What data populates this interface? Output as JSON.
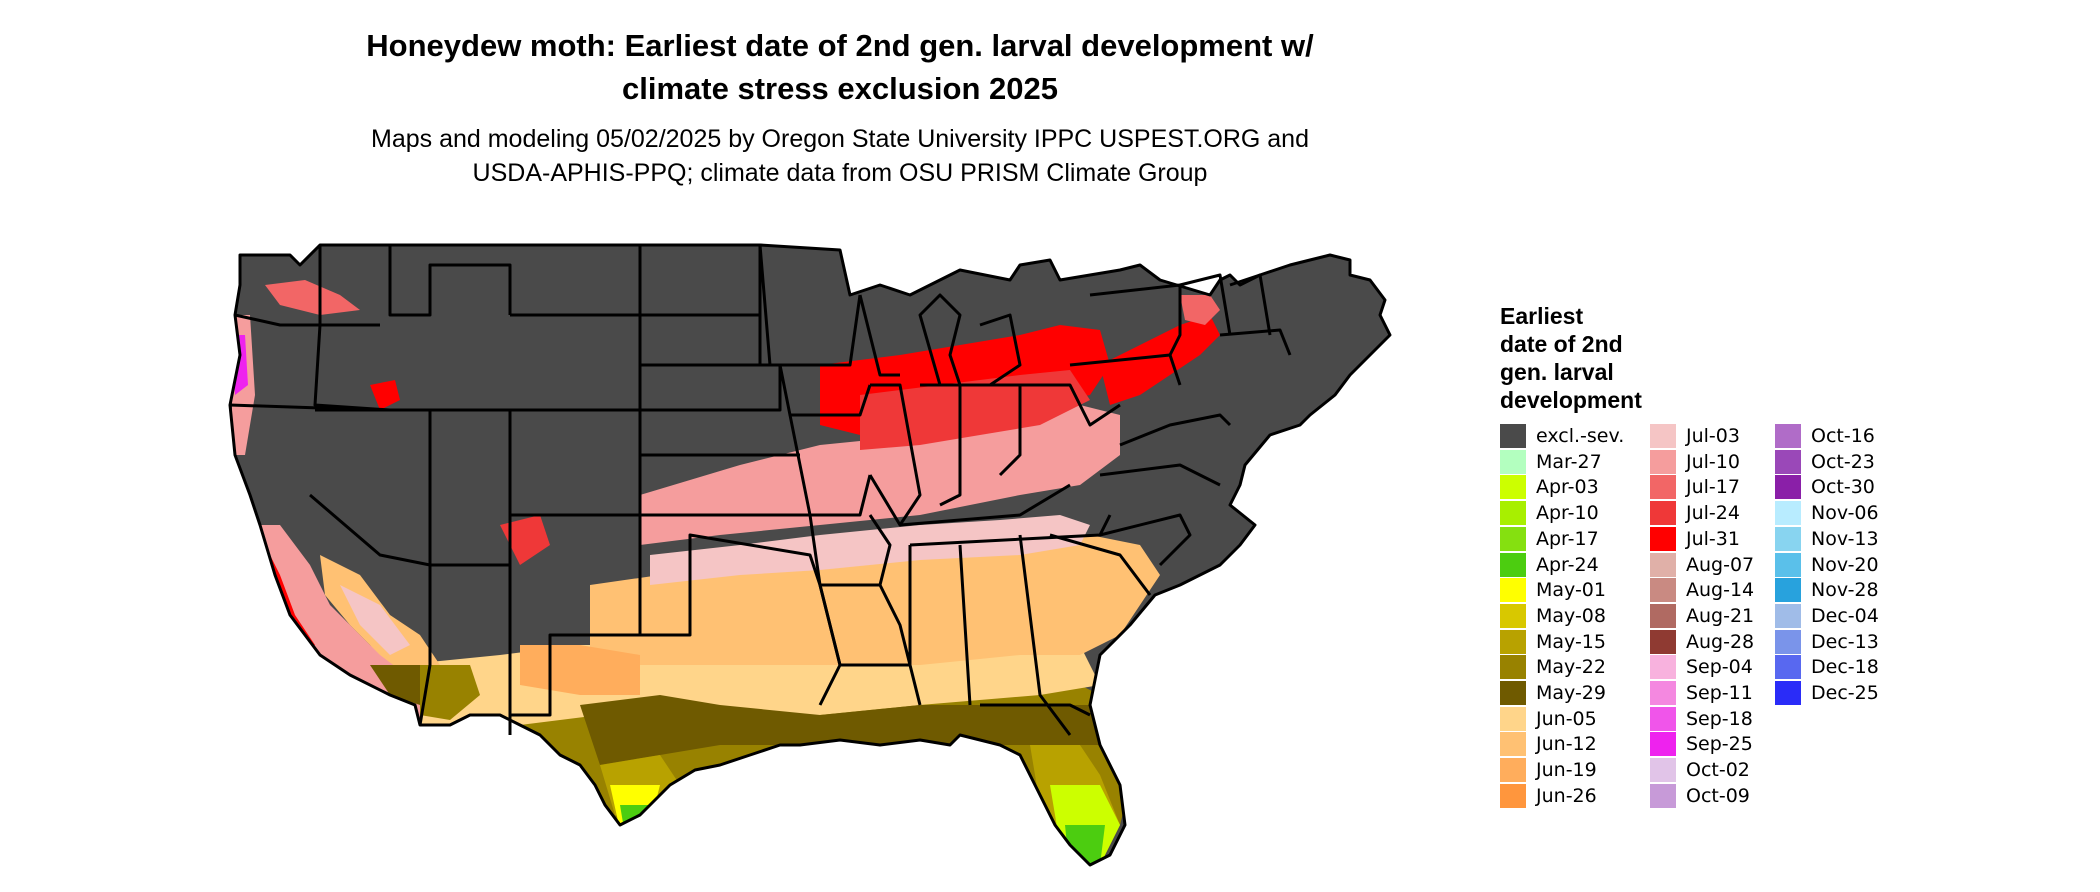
{
  "title_lines": [
    "Honeydew moth: Earliest date of 2nd gen. larval development w/",
    "climate stress exclusion 2025"
  ],
  "subtitle_lines": [
    "Maps and modeling 05/02/2025 by Oregon State University IPPC USPEST.ORG and",
    "USDA-APHIS-PPQ; climate data from OSU PRISM Climate Group"
  ],
  "legend": {
    "title_lines": [
      "Earliest",
      "date of 2nd",
      "gen. larval",
      "development"
    ],
    "items": [
      {
        "label": "excl.-sev.",
        "color": "#4a4a4a"
      },
      {
        "label": "Mar-27",
        "color": "#b3ffbf"
      },
      {
        "label": "Apr-03",
        "color": "#ccff00"
      },
      {
        "label": "Apr-10",
        "color": "#a8ef00"
      },
      {
        "label": "Apr-17",
        "color": "#85e010"
      },
      {
        "label": "Apr-24",
        "color": "#4ccd10"
      },
      {
        "label": "May-01",
        "color": "#ffff00"
      },
      {
        "label": "May-08",
        "color": "#d8c800"
      },
      {
        "label": "May-15",
        "color": "#b8a200"
      },
      {
        "label": "May-22",
        "color": "#988200"
      },
      {
        "label": "May-29",
        "color": "#6f5a00"
      },
      {
        "label": "Jun-05",
        "color": "#ffd58a"
      },
      {
        "label": "Jun-12",
        "color": "#ffc173"
      },
      {
        "label": "Jun-19",
        "color": "#ffad5c"
      },
      {
        "label": "Jun-26",
        "color": "#ff963d"
      },
      {
        "label": "Jul-03",
        "color": "#f5c5c5"
      },
      {
        "label": "Jul-10",
        "color": "#f59d9d"
      },
      {
        "label": "Jul-17",
        "color": "#f26666"
      },
      {
        "label": "Jul-24",
        "color": "#ef3838"
      },
      {
        "label": "Jul-31",
        "color": "#ff0000"
      },
      {
        "label": "Aug-07",
        "color": "#e0b0a8"
      },
      {
        "label": "Aug-14",
        "color": "#c98a82"
      },
      {
        "label": "Aug-21",
        "color": "#b06a62"
      },
      {
        "label": "Aug-28",
        "color": "#8f3a32"
      },
      {
        "label": "Sep-04",
        "color": "#f8b2de"
      },
      {
        "label": "Sep-11",
        "color": "#f488e0"
      },
      {
        "label": "Sep-18",
        "color": "#f055ea"
      },
      {
        "label": "Sep-25",
        "color": "#ee22ee"
      },
      {
        "label": "Oct-02",
        "color": "#e1c4e8"
      },
      {
        "label": "Oct-09",
        "color": "#c79ad8"
      },
      {
        "label": "Oct-16",
        "color": "#b06cc8"
      },
      {
        "label": "Oct-23",
        "color": "#9a48b8"
      },
      {
        "label": "Oct-30",
        "color": "#8a1fa8"
      },
      {
        "label": "Nov-06",
        "color": "#b8ecff"
      },
      {
        "label": "Nov-13",
        "color": "#88d4f0"
      },
      {
        "label": "Nov-20",
        "color": "#5ac0ea"
      },
      {
        "label": "Nov-28",
        "color": "#28a2dd"
      },
      {
        "label": "Dec-04",
        "color": "#a0bce8"
      },
      {
        "label": "Dec-13",
        "color": "#7a94ea"
      },
      {
        "label": "Dec-18",
        "color": "#5868f0"
      },
      {
        "label": "Dec-25",
        "color": "#2a2cf8"
      }
    ]
  }
}
